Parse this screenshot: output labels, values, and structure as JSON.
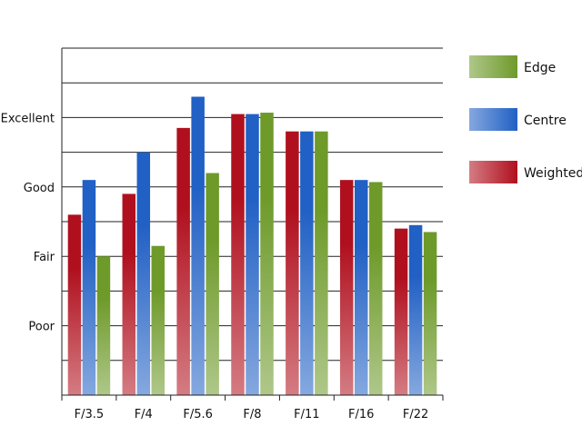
{
  "chart_data": {
    "type": "bar",
    "categories": [
      "F/3.5",
      "F/4",
      "F/5.6",
      "F/8",
      "F/11",
      "F/16",
      "F/22"
    ],
    "series": [
      {
        "name": "Weighted",
        "color": "#b0101e",
        "values": [
          2.6,
          2.9,
          3.85,
          4.05,
          3.8,
          3.1,
          2.4
        ]
      },
      {
        "name": "Centre",
        "color": "#2160c4",
        "values": [
          3.1,
          3.5,
          4.3,
          4.05,
          3.8,
          3.1,
          2.45
        ]
      },
      {
        "name": "Edge",
        "color": "#6e9a2a",
        "values": [
          2.0,
          2.15,
          3.2,
          4.07,
          3.8,
          3.07,
          2.35
        ]
      }
    ],
    "ylim": [
      0,
      5
    ],
    "ytick_values": [
      1,
      2,
      3,
      4
    ],
    "ytick_labels": [
      "Poor",
      "Fair",
      "Good",
      "Excellent"
    ],
    "grid_step": 0.5,
    "grid": true,
    "legend_order": [
      "Edge",
      "Centre",
      "Weighted"
    ],
    "legend_position": "right",
    "title": "",
    "xlabel": "",
    "ylabel": ""
  }
}
